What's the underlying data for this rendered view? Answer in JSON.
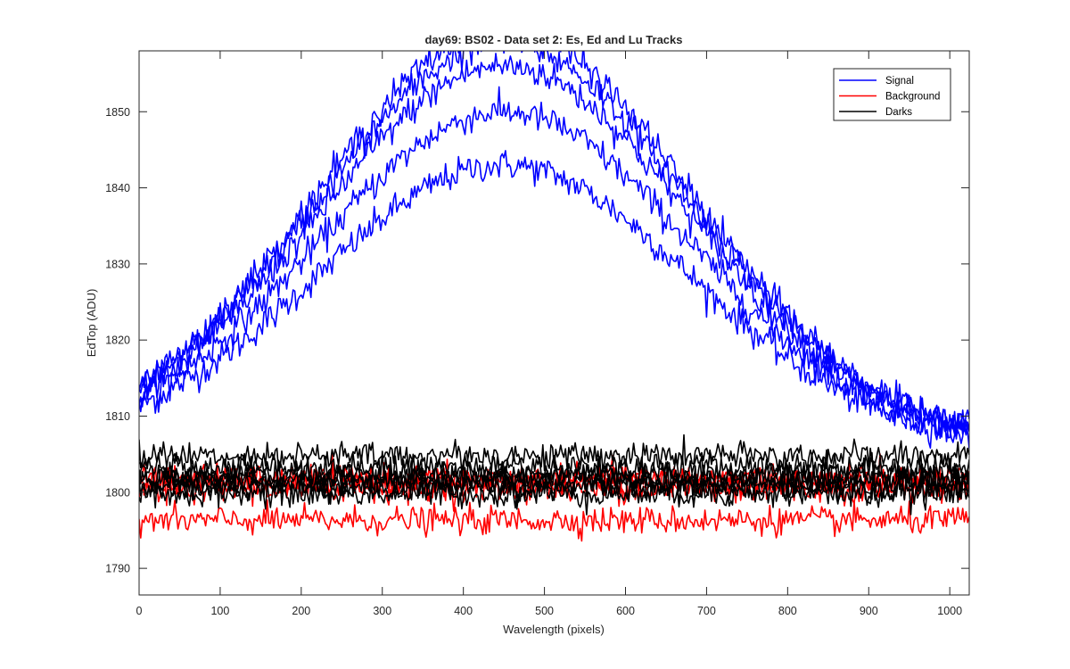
{
  "chart_data": {
    "type": "line",
    "title": "day69: BS02 - Data set 2: Es, Ed and Lu Tracks",
    "xlabel": "Wavelength (pixels)",
    "ylabel": "EdTop (ADU)",
    "xlim": [
      0,
      1024
    ],
    "ylim": [
      1786.5,
      1858
    ],
    "xticks": [
      0,
      100,
      200,
      300,
      400,
      500,
      600,
      700,
      800,
      900,
      1000
    ],
    "yticks": [
      1790,
      1800,
      1810,
      1820,
      1830,
      1840,
      1850
    ],
    "legend": {
      "placement": "top-right",
      "entries": [
        {
          "label": "Signal",
          "color": "#0000ff"
        },
        {
          "label": "Background",
          "color": "#ff0000"
        },
        {
          "label": "Darks",
          "color": "#000000"
        }
      ]
    },
    "series_groups": [
      {
        "name": "Signal",
        "color": "#0000ff",
        "shape": "gaussian",
        "center": 450,
        "sigma": 230,
        "tracks": [
          {
            "base": 1806,
            "peak": 1843
          },
          {
            "base": 1806,
            "peak": 1850
          },
          {
            "base": 1806,
            "peak": 1856
          },
          {
            "base": 1806,
            "peak": 1859
          },
          {
            "base": 1806,
            "peak": 1861
          }
        ],
        "noise": 1.0
      },
      {
        "name": "Background",
        "color": "#ff0000",
        "shape": "flat",
        "tracks": [
          {
            "level": 1796.3
          },
          {
            "level": 1800.5
          },
          {
            "level": 1801.3
          },
          {
            "level": 1801.8
          }
        ],
        "noise": 0.9
      },
      {
        "name": "Darks",
        "color": "#000000",
        "shape": "flat",
        "tracks": [
          {
            "level": 1799.8
          },
          {
            "level": 1800.6
          },
          {
            "level": 1801.2
          },
          {
            "level": 1801.7
          },
          {
            "level": 1802.3
          },
          {
            "level": 1803.3
          },
          {
            "level": 1804.8
          }
        ],
        "noise": 0.9
      }
    ],
    "grid": false
  }
}
